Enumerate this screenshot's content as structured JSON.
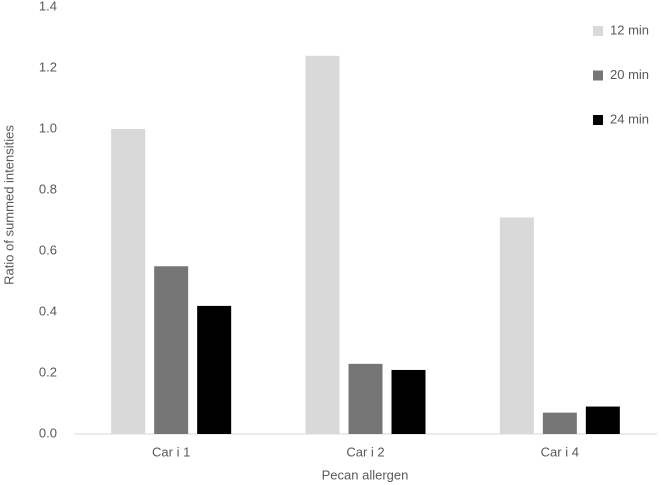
{
  "chart_data": {
    "type": "bar",
    "x_label": "Pecan allergen",
    "y_label": "Ratio of summed intensities",
    "categories": [
      "Car i 1",
      "Car i 2",
      "Car i 4"
    ],
    "series": [
      {
        "name": "12 min",
        "color": "#d9d9d9",
        "values": [
          1.0,
          1.24,
          0.71
        ]
      },
      {
        "name": "20 min",
        "color": "#767676",
        "values": [
          0.55,
          0.23,
          0.07
        ]
      },
      {
        "name": "24 min",
        "color": "#000000",
        "values": [
          0.42,
          0.21,
          0.09
        ]
      }
    ],
    "ylim": [
      0,
      1.4
    ],
    "yticks": [
      {
        "value": 0,
        "label": "0.0"
      },
      0.2,
      0.4,
      0.6,
      0.8,
      {
        "value": 1,
        "label": "1.0"
      },
      1.2,
      1.4
    ],
    "grid": false,
    "legend": "right"
  }
}
